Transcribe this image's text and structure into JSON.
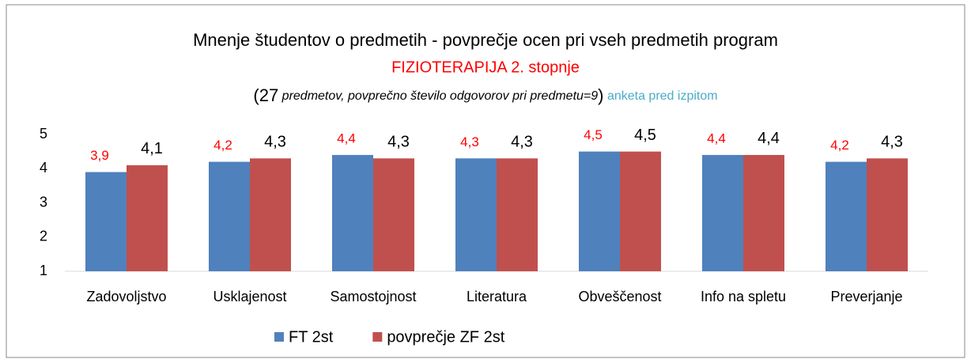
{
  "chart_data": {
    "type": "bar",
    "title": "Mnenje študentov o predmetih - povprečje ocen pri vseh predmetih program",
    "subtitle": "FIZIOTERAPIJA 2. stopnje",
    "note_parts": [
      "(27",
      "predmetov, povprečno število odgovorov pri predmetu=9",
      ")"
    ],
    "annotation": "anketa pred izpitom",
    "categories": [
      "Zadovoljstvo",
      "Usklajenost",
      "Samostojnost",
      "Literatura",
      "Obveščenost",
      "Info na spletu",
      "Preverjanje"
    ],
    "series": [
      {
        "name": "FT 2st",
        "color": "#4f81bd",
        "label_color": "#ff0000",
        "values": [
          3.9,
          4.2,
          4.4,
          4.3,
          4.5,
          4.4,
          4.2
        ],
        "value_labels": [
          "3,9",
          "4,2",
          "4,4",
          "4,3",
          "4,5",
          "4,4",
          "4,2"
        ]
      },
      {
        "name": "povprečje ZF 2st",
        "color": "#c0504d",
        "label_color": "#000000",
        "values": [
          4.1,
          4.3,
          4.3,
          4.3,
          4.5,
          4.4,
          4.3
        ],
        "value_labels": [
          "4,1",
          "4,3",
          "4,3",
          "4,3",
          "4,5",
          "4,4",
          "4,3"
        ]
      }
    ],
    "ylim": [
      1,
      5
    ],
    "yticks": [
      1,
      2,
      3,
      4,
      5
    ],
    "grid": false,
    "legend": "bottom"
  }
}
